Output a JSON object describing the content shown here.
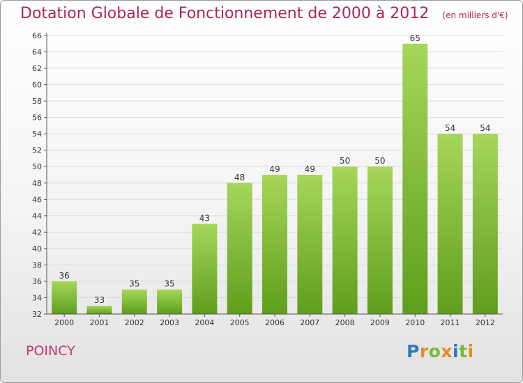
{
  "chart_data": {
    "type": "bar",
    "title": "Dotation Globale de Fonctionnement de 2000 à 2012",
    "subtitle": "(en milliers d'€)",
    "categories": [
      "2000",
      "2001",
      "2002",
      "2003",
      "2004",
      "2005",
      "2006",
      "2007",
      "2008",
      "2009",
      "2010",
      "2011",
      "2012"
    ],
    "values": [
      36,
      33,
      35,
      35,
      43,
      48,
      49,
      49,
      50,
      50,
      65,
      54,
      54
    ],
    "data_labels": [
      "36",
      "33",
      "35",
      "35",
      "43",
      "48",
      "49",
      "49",
      "50",
      "50",
      "65",
      "54",
      "54"
    ],
    "ylim": [
      32,
      66
    ],
    "yticks": [
      "32",
      "34",
      "36",
      "38",
      "40",
      "42",
      "44",
      "46",
      "48",
      "50",
      "52",
      "54",
      "56",
      "58",
      "60",
      "62",
      "64",
      "66"
    ],
    "grid": true,
    "colors": {
      "bar_light": "#a6d65a",
      "bar_dark": "#5f9e1c",
      "title": "#b0235a",
      "grid": "#dcdcdc"
    }
  },
  "footer": {
    "commune": "POINCY",
    "logo_letters": [
      {
        "t": "P",
        "c": "l0"
      },
      {
        "t": "r",
        "c": "l1"
      },
      {
        "t": "o",
        "c": "l2"
      },
      {
        "t": "x",
        "c": "l1"
      },
      {
        "t": "i",
        "c": "l0"
      },
      {
        "t": "t",
        "c": "l2"
      },
      {
        "t": "i",
        "c": "l1"
      }
    ]
  }
}
